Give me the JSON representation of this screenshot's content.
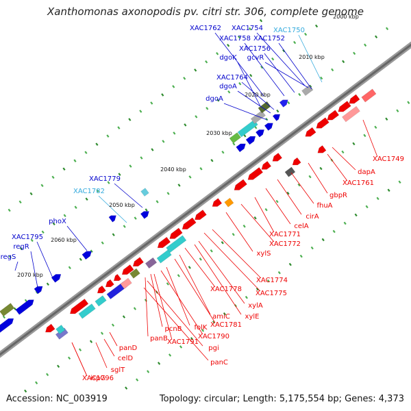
{
  "title": "Xanthomonas axonopodis pv. citri str. 306, complete genome",
  "accession": "Accession: NC_003919",
  "topology": "Topology: circular; Length: 5,175,554 bp; Genes: 4,373",
  "kbp_ticks": [
    "2000 kbp",
    "2010 kbp",
    "2020 kbp",
    "2030 kbp",
    "2040 kbp",
    "2050 kbp",
    "2060 kbp",
    "2070 kbp"
  ],
  "colors": {
    "forward_cds": "#0000cc",
    "reverse_cds": "#ee0000",
    "rna": "#33cccc",
    "backbone": "#777777"
  },
  "forward_genes": [
    "XAC1762",
    "XAC1754",
    "XAC1750",
    "XAC1758",
    "XAC1752",
    "dgoK",
    "XAC1756",
    "gcvR",
    "XAC1764",
    "dgoA",
    "dgoA",
    "XAC1779",
    "XAC1782",
    "phoX",
    "XAC1795",
    "regR",
    "regS"
  ],
  "reverse_genes": [
    "XAC1749",
    "dapA",
    "XAC1761",
    "gbpR",
    "fhuA",
    "cirA",
    "celA",
    "XAC1771",
    "XAC1772",
    "xylS",
    "XAC1774",
    "XAC1775",
    "XAC1778",
    "xylA",
    "xylE",
    "amiC",
    "XAC1781",
    "folK",
    "pcnB",
    "XAC1790",
    "panB",
    "XAC1791",
    "pgi",
    "panC",
    "panD",
    "celD",
    "sglT",
    "XAC1796",
    "ispG"
  ]
}
